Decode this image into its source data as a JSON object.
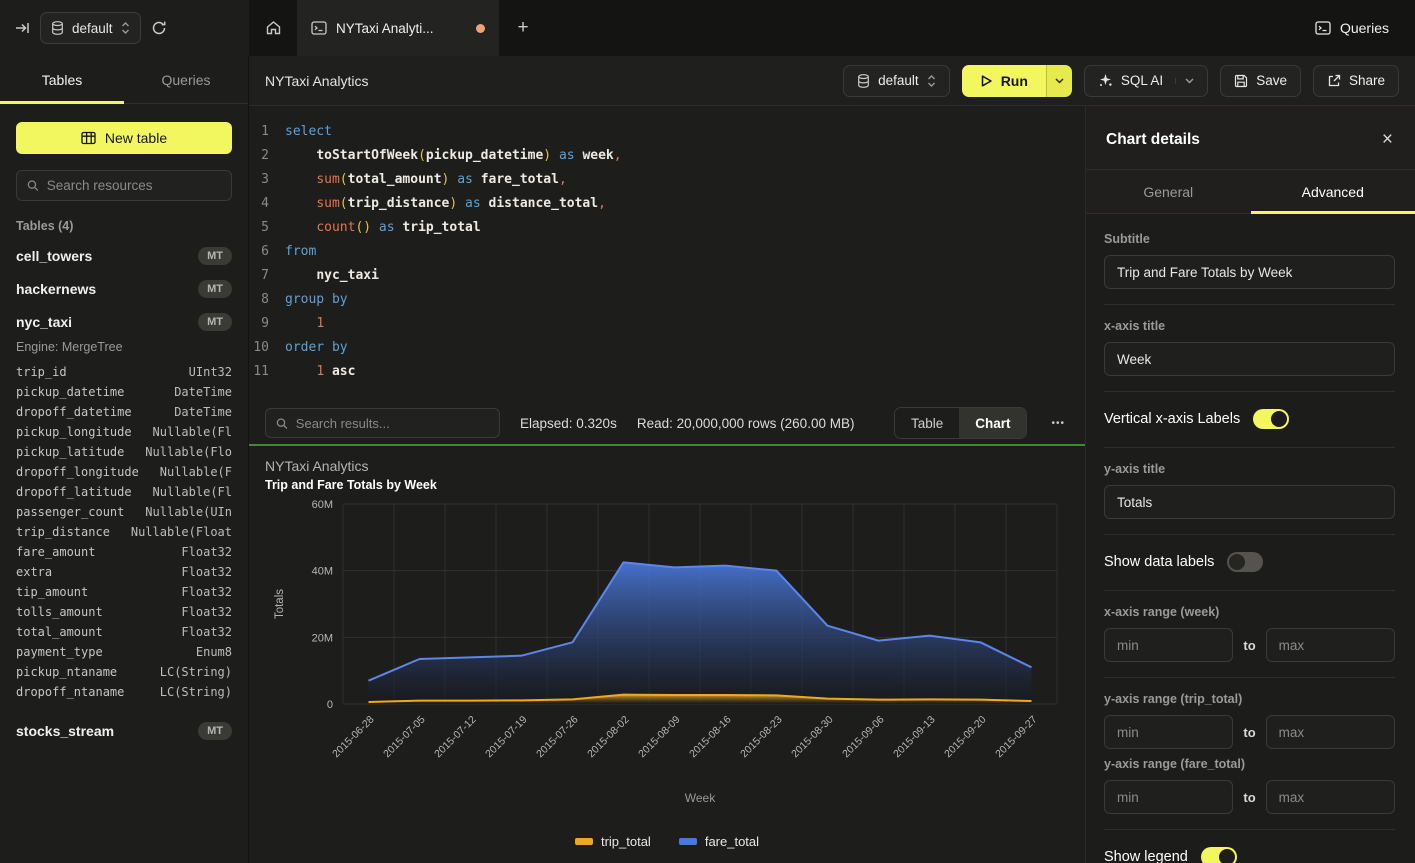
{
  "topbar": {
    "database_selector": "default",
    "tab_title": "NYTaxi Analyti...",
    "new_tab_label": "+",
    "queries_label": "Queries"
  },
  "sidebar": {
    "tabs": {
      "tables": "Tables",
      "queries": "Queries"
    },
    "active_tab": "Tables",
    "new_table_label": "New table",
    "search_placeholder": "Search resources",
    "section_title": "Tables (4)",
    "tables": [
      {
        "name": "cell_towers",
        "badge": "MT"
      },
      {
        "name": "hackernews",
        "badge": "MT"
      },
      {
        "name": "nyc_taxi",
        "badge": "MT",
        "engine": "Engine: MergeTree",
        "columns": [
          {
            "name": "trip_id",
            "type": "UInt32"
          },
          {
            "name": "pickup_datetime",
            "type": "DateTime"
          },
          {
            "name": "dropoff_datetime",
            "type": "DateTime"
          },
          {
            "name": "pickup_longitude",
            "type": "Nullable(Fl"
          },
          {
            "name": "pickup_latitude",
            "type": "Nullable(Flo"
          },
          {
            "name": "dropoff_longitude",
            "type": "Nullable(F"
          },
          {
            "name": "dropoff_latitude",
            "type": "Nullable(Fl"
          },
          {
            "name": "passenger_count",
            "type": "Nullable(UIn"
          },
          {
            "name": "trip_distance",
            "type": "Nullable(Float"
          },
          {
            "name": "fare_amount",
            "type": "Float32"
          },
          {
            "name": "extra",
            "type": "Float32"
          },
          {
            "name": "tip_amount",
            "type": "Float32"
          },
          {
            "name": "tolls_amount",
            "type": "Float32"
          },
          {
            "name": "total_amount",
            "type": "Float32"
          },
          {
            "name": "payment_type",
            "type": "Enum8"
          },
          {
            "name": "pickup_ntaname",
            "type": "LC(String)"
          },
          {
            "name": "dropoff_ntaname",
            "type": "LC(String)"
          }
        ]
      },
      {
        "name": "stocks_stream",
        "badge": "MT"
      }
    ]
  },
  "editor": {
    "title": "NYTaxi Analytics",
    "toolbar": {
      "database_selector": "default",
      "run_label": "Run",
      "sql_ai_label": "SQL AI",
      "save_label": "Save",
      "share_label": "Share"
    },
    "lines": [
      [
        [
          "kw",
          "select"
        ]
      ],
      [
        [
          "pl",
          "    "
        ],
        [
          "id",
          "toStartOfWeek"
        ],
        [
          "pr",
          "("
        ],
        [
          "id",
          "pickup_datetime"
        ],
        [
          "pr",
          ")"
        ],
        [
          "kw",
          " as "
        ],
        [
          "id",
          "week"
        ],
        [
          "pu",
          ","
        ]
      ],
      [
        [
          "pl",
          "    "
        ],
        [
          "fn",
          "sum"
        ],
        [
          "pr",
          "("
        ],
        [
          "id",
          "total_amount"
        ],
        [
          "pr",
          ")"
        ],
        [
          "kw",
          " as "
        ],
        [
          "id",
          "fare_total"
        ],
        [
          "pu",
          ","
        ]
      ],
      [
        [
          "pl",
          "    "
        ],
        [
          "fn",
          "sum"
        ],
        [
          "pr",
          "("
        ],
        [
          "id",
          "trip_distance"
        ],
        [
          "pr",
          ")"
        ],
        [
          "kw",
          " as "
        ],
        [
          "id",
          "distance_total"
        ],
        [
          "pu",
          ","
        ]
      ],
      [
        [
          "pl",
          "    "
        ],
        [
          "fn",
          "count"
        ],
        [
          "pr",
          "()"
        ],
        [
          "kw",
          " as "
        ],
        [
          "id",
          "trip_total"
        ]
      ],
      [
        [
          "kw",
          "from"
        ]
      ],
      [
        [
          "pl",
          "    "
        ],
        [
          "id",
          "nyc_taxi"
        ]
      ],
      [
        [
          "kw",
          "group by"
        ]
      ],
      [
        [
          "pl",
          "    "
        ],
        [
          "nm",
          "1"
        ]
      ],
      [
        [
          "kw",
          "order by"
        ]
      ],
      [
        [
          "pl",
          "    "
        ],
        [
          "nm",
          "1"
        ],
        [
          "id",
          " asc"
        ]
      ]
    ]
  },
  "results_bar": {
    "search_placeholder": "Search results...",
    "elapsed": "Elapsed: 0.320s",
    "read": "Read: 20,000,000 rows (260.00 MB)",
    "view_table_label": "Table",
    "view_chart_label": "Chart",
    "active_view": "Chart",
    "more_label": "•••"
  },
  "chart_data": {
    "type": "area",
    "title": "NYTaxi Analytics",
    "subtitle": "Trip and Fare Totals by Week",
    "categories": [
      "2015-06-28",
      "2015-07-05",
      "2015-07-12",
      "2015-07-19",
      "2015-07-26",
      "2015-08-02",
      "2015-08-09",
      "2015-08-16",
      "2015-08-23",
      "2015-08-30",
      "2015-09-06",
      "2015-09-13",
      "2015-09-20",
      "2015-09-27"
    ],
    "series": [
      {
        "name": "trip_total",
        "color": "#e9a820",
        "line_color": "#f2a71f",
        "values_millions": [
          0.6,
          1.0,
          1.0,
          1.1,
          1.4,
          2.8,
          2.7,
          2.7,
          2.6,
          1.6,
          1.3,
          1.4,
          1.3,
          0.9
        ]
      },
      {
        "name": "fare_total",
        "color": "#4a79de",
        "line_color": "#5c86ea",
        "values_millions": [
          7,
          13.5,
          14,
          14.5,
          18.5,
          42.5,
          41,
          41.5,
          40,
          23.5,
          19,
          20.5,
          18.5,
          11
        ]
      }
    ],
    "xlabel": "Week",
    "ylabel": "Totals",
    "ylim_millions": [
      0,
      60
    ],
    "ytick_values": [
      0,
      20,
      40,
      60
    ],
    "yticks": [
      "0",
      "20M",
      "40M",
      "60M"
    ],
    "grid": true,
    "legend_position": "bottom"
  },
  "panel": {
    "title": "Chart details",
    "close_label": "×",
    "tabs": {
      "general": "General",
      "advanced": "Advanced"
    },
    "active_tab": "Advanced",
    "fields": {
      "subtitle": {
        "label": "Subtitle",
        "value": "Trip and Fare Totals by Week"
      },
      "x_axis_title": {
        "label": "x-axis title",
        "value": "Week"
      },
      "vertical_x_labels": {
        "label": "Vertical x-axis Labels",
        "on": true
      },
      "y_axis_title": {
        "label": "y-axis title",
        "value": "Totals"
      },
      "show_data_labels": {
        "label": "Show data labels",
        "on": false
      },
      "x_axis_range": {
        "label": "x-axis range (week)",
        "min_placeholder": "min",
        "max_placeholder": "max",
        "to": "to"
      },
      "y_axis_range_trip": {
        "label": "y-axis range (trip_total)",
        "min_placeholder": "min",
        "max_placeholder": "max",
        "to": "to"
      },
      "y_axis_range_fare": {
        "label": "y-axis range (fare_total)",
        "min_placeholder": "min",
        "max_placeholder": "max",
        "to": "to"
      },
      "show_legend": {
        "label": "Show legend",
        "on": true
      }
    }
  },
  "colors": {
    "accent_yellow": "#f3f75f",
    "status_green": "#3f8a32",
    "tab_dot_orange": "#f0a175",
    "series_trip_total": "#e9a820",
    "series_fare_total": "#4a79de"
  }
}
